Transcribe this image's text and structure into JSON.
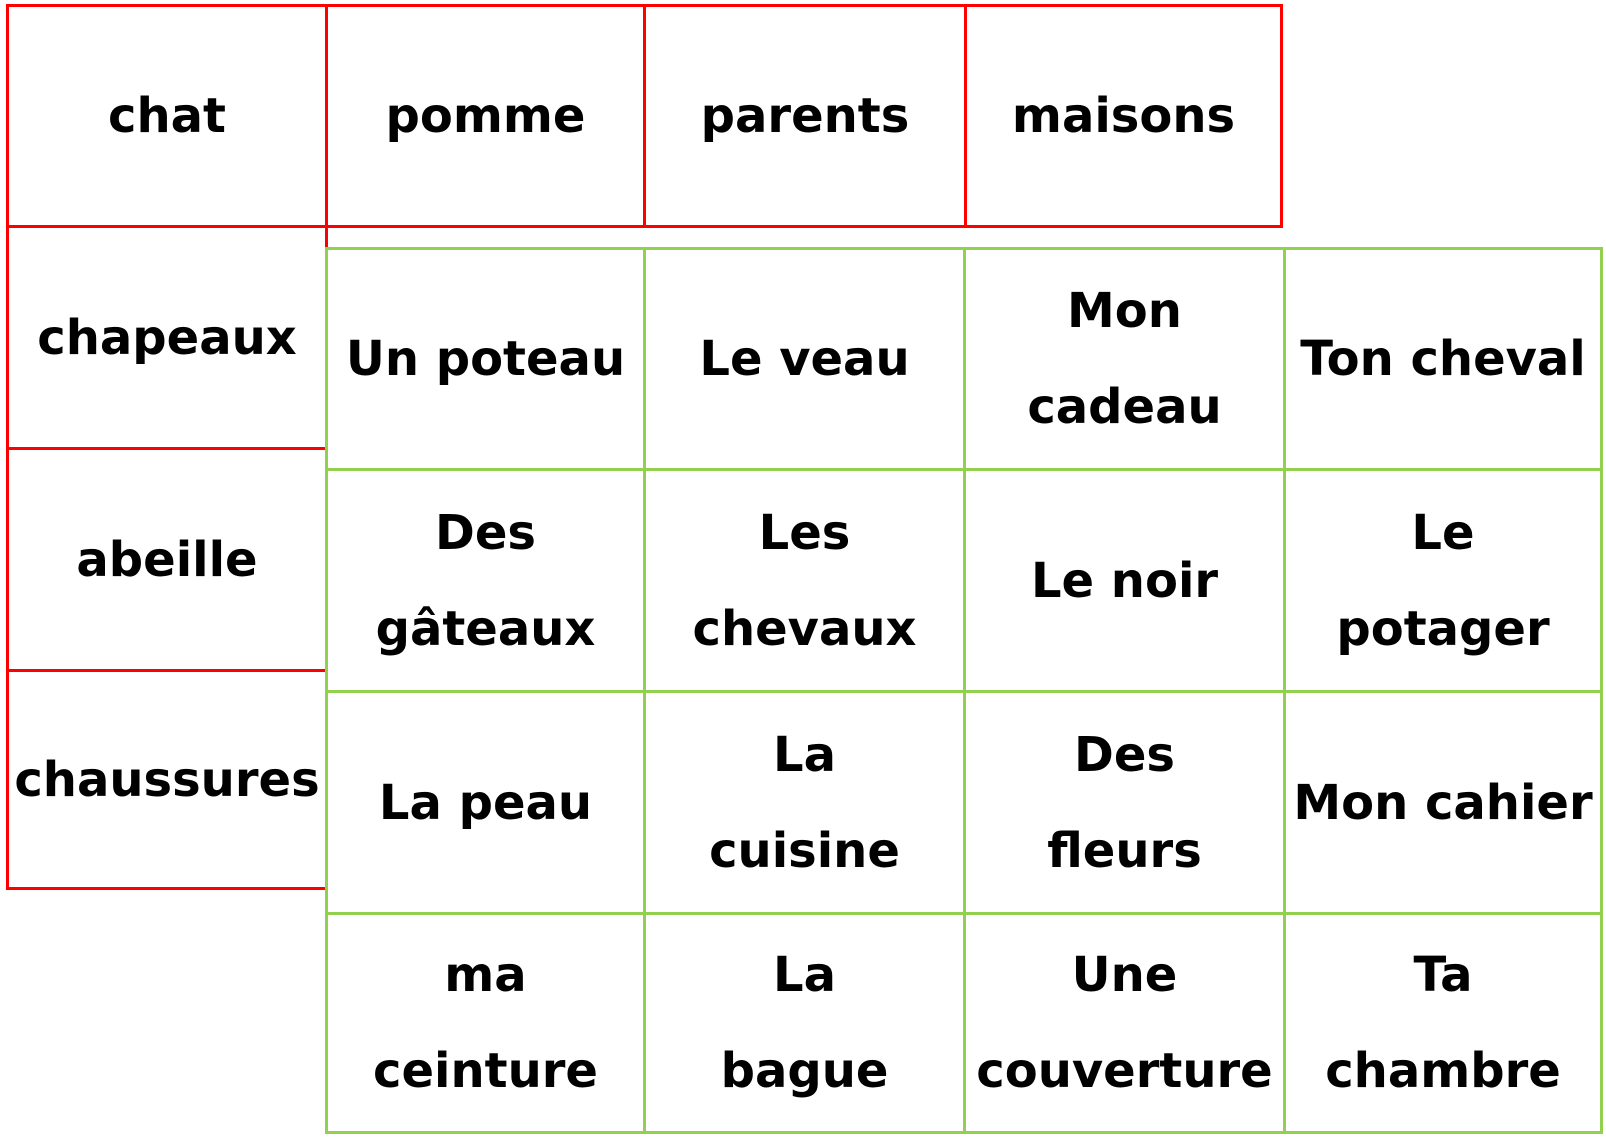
{
  "colors": {
    "red_table": "#ff0000",
    "green_table": "#92d050"
  },
  "red_table": {
    "top_row": [
      "chat",
      "pomme",
      "parents",
      "maisons"
    ],
    "left_column": [
      "chapeaux",
      "abeille",
      "chaussures"
    ]
  },
  "green_table": {
    "rows": [
      [
        "Un poteau",
        "Le veau",
        "Mon\ncadeau",
        "Ton cheval"
      ],
      [
        "Des\ngâteaux",
        "Les\nchevaux",
        "Le noir",
        "Le\npotager"
      ],
      [
        "La peau",
        "La\ncuisine",
        "Des\nfleurs",
        "Mon cahier"
      ],
      [
        "ma\nceinture",
        "La\nbague",
        "Une\ncouverture",
        "Ta\nchambre"
      ]
    ]
  }
}
